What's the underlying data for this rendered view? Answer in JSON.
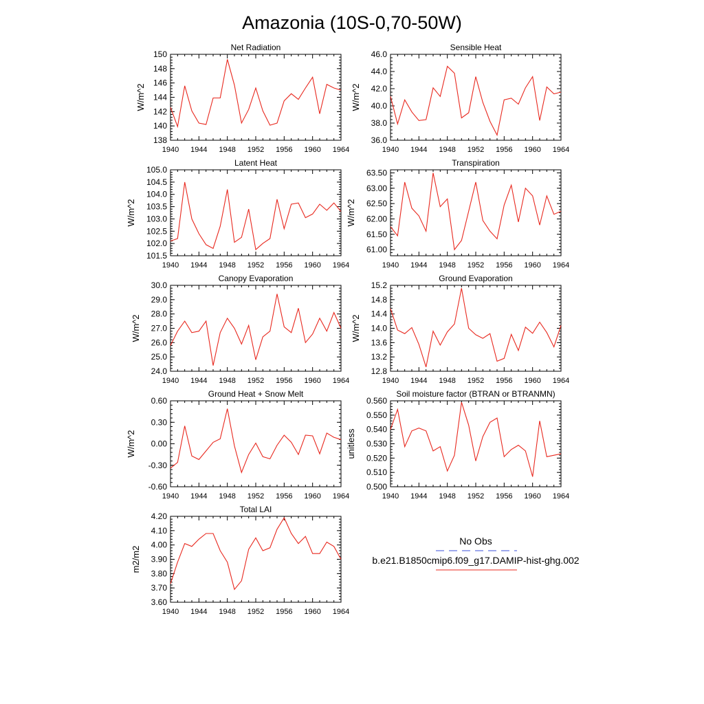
{
  "figure": {
    "title": "Amazonia (10S-0,70-50W)"
  },
  "legend": {
    "obs_label": "No Obs",
    "model_label": "b.e21.B1850cmip6.f09_g17.DAMIP-hist-ghg.002",
    "obs_color": "#3b4fd8",
    "model_color": "#e8281e"
  },
  "chart_data": [
    {
      "type": "line",
      "title": "Net Radiation",
      "ylabel": "W/m^2",
      "xlim": [
        1940,
        1964
      ],
      "ylim": [
        138,
        150
      ],
      "yticks": [
        "138",
        "140",
        "142",
        "144",
        "146",
        "148",
        "150"
      ],
      "xticks": [
        "1940",
        "1944",
        "1948",
        "1952",
        "1956",
        "1960",
        "1964"
      ],
      "series": [
        {
          "values": [
            142.6,
            139.9,
            145.6,
            142.1,
            140.4,
            140.2,
            143.9,
            143.9,
            149.3,
            145.7,
            140.4,
            142.3,
            145.3,
            142.1,
            140.1,
            140.4,
            143.5,
            144.5,
            143.7,
            145.3,
            146.8,
            141.7,
            145.8,
            145.3,
            145.0
          ]
        }
      ]
    },
    {
      "type": "line",
      "title": "Sensible Heat",
      "ylabel": "W/m^2",
      "xlim": [
        1940,
        1964
      ],
      "ylim": [
        36.0,
        46.0
      ],
      "yticks": [
        "36.0",
        "38.0",
        "40.0",
        "42.0",
        "44.0",
        "46.0"
      ],
      "xticks": [
        "1940",
        "1944",
        "1948",
        "1952",
        "1956",
        "1960",
        "1964"
      ],
      "series": [
        {
          "values": [
            41.1,
            37.9,
            40.7,
            39.3,
            38.3,
            38.4,
            42.1,
            41.1,
            44.6,
            43.8,
            38.6,
            39.2,
            43.4,
            40.4,
            38.2,
            36.6,
            40.7,
            40.9,
            40.2,
            42.1,
            43.4,
            38.3,
            42.2,
            41.4,
            41.6
          ]
        }
      ]
    },
    {
      "type": "line",
      "title": "Latent Heat",
      "ylabel": "W/m^2",
      "xlim": [
        1940,
        1964
      ],
      "ylim": [
        101.5,
        105.0
      ],
      "yticks": [
        "101.5",
        "102.0",
        "102.5",
        "103.0",
        "103.5",
        "104.0",
        "104.5",
        "105.0"
      ],
      "xticks": [
        "1940",
        "1944",
        "1948",
        "1952",
        "1956",
        "1960",
        "1964"
      ],
      "series": [
        {
          "values": [
            102.1,
            102.2,
            104.5,
            103.0,
            102.4,
            101.95,
            101.8,
            102.7,
            104.2,
            102.05,
            102.25,
            103.4,
            101.75,
            102.0,
            102.2,
            103.8,
            102.6,
            103.6,
            103.65,
            103.05,
            103.2,
            103.6,
            103.35,
            103.65,
            103.3
          ]
        }
      ]
    },
    {
      "type": "line",
      "title": "Transpiration",
      "ylabel": "W/m^2",
      "xlim": [
        1940,
        1964
      ],
      "ylim": [
        60.8,
        63.6
      ],
      "yticks": [
        "61.00",
        "61.50",
        "62.00",
        "62.50",
        "63.00",
        "63.50"
      ],
      "xticks": [
        "1940",
        "1944",
        "1948",
        "1952",
        "1956",
        "1960",
        "1964"
      ],
      "series": [
        {
          "values": [
            61.75,
            61.45,
            63.2,
            62.35,
            62.1,
            61.6,
            63.5,
            62.4,
            62.65,
            61.0,
            61.3,
            62.25,
            63.2,
            61.95,
            61.6,
            61.35,
            62.45,
            63.1,
            61.9,
            63.0,
            62.75,
            61.8,
            62.75,
            62.15,
            62.25
          ]
        }
      ]
    },
    {
      "type": "line",
      "title": "Canopy Evaporation",
      "ylabel": "W/m^2",
      "xlim": [
        1940,
        1964
      ],
      "ylim": [
        24.0,
        30.0
      ],
      "yticks": [
        "24.0",
        "25.0",
        "26.0",
        "27.0",
        "28.0",
        "29.0",
        "30.0"
      ],
      "xticks": [
        "1940",
        "1944",
        "1948",
        "1952",
        "1956",
        "1960",
        "1964"
      ],
      "series": [
        {
          "values": [
            25.8,
            26.8,
            27.5,
            26.7,
            26.8,
            27.5,
            24.4,
            26.7,
            27.7,
            27.0,
            25.9,
            27.2,
            24.8,
            26.4,
            26.8,
            29.4,
            27.1,
            26.7,
            28.4,
            26.0,
            26.6,
            27.7,
            26.8,
            28.1,
            27.0
          ]
        }
      ]
    },
    {
      "type": "line",
      "title": "Ground Evaporation",
      "ylabel": "W/m^2",
      "xlim": [
        1940,
        1964
      ],
      "ylim": [
        12.8,
        15.2
      ],
      "yticks": [
        "12.8",
        "13.2",
        "13.6",
        "14.0",
        "14.4",
        "14.8",
        "15.2"
      ],
      "xticks": [
        "1940",
        "1944",
        "1948",
        "1952",
        "1956",
        "1960",
        "1964"
      ],
      "series": [
        {
          "values": [
            14.55,
            13.95,
            13.85,
            14.02,
            13.55,
            12.92,
            13.92,
            13.53,
            13.9,
            14.12,
            15.12,
            14.0,
            13.82,
            13.72,
            13.85,
            13.08,
            13.16,
            13.83,
            13.38,
            14.03,
            13.86,
            14.17,
            13.88,
            13.48,
            14.08
          ]
        }
      ]
    },
    {
      "type": "line",
      "title": "Ground Heat + Snow Melt",
      "ylabel": "W/m^2",
      "xlim": [
        1940,
        1964
      ],
      "ylim": [
        -0.6,
        0.6
      ],
      "yticks": [
        "-0.60",
        "-0.30",
        "0.00",
        "0.30",
        "0.60"
      ],
      "xticks": [
        "1940",
        "1944",
        "1948",
        "1952",
        "1956",
        "1960",
        "1964"
      ],
      "series": [
        {
          "values": [
            -0.34,
            -0.26,
            0.25,
            -0.17,
            -0.22,
            -0.1,
            0.02,
            0.07,
            0.49,
            -0.03,
            -0.4,
            -0.15,
            0.01,
            -0.18,
            -0.21,
            -0.02,
            0.12,
            0.02,
            -0.15,
            0.12,
            0.11,
            -0.14,
            0.15,
            0.09,
            0.06
          ]
        }
      ]
    },
    {
      "type": "line",
      "title": "Soil moisture factor (BTRAN or BTRANMN)",
      "ylabel": "unitless",
      "xlim": [
        1940,
        1964
      ],
      "ylim": [
        0.5,
        0.56
      ],
      "yticks": [
        "0.500",
        "0.510",
        "0.520",
        "0.530",
        "0.540",
        "0.550",
        "0.560"
      ],
      "xticks": [
        "1940",
        "1944",
        "1948",
        "1952",
        "1956",
        "1960",
        "1964"
      ],
      "series": [
        {
          "values": [
            0.54,
            0.554,
            0.528,
            0.539,
            0.541,
            0.539,
            0.525,
            0.528,
            0.511,
            0.522,
            0.559,
            0.543,
            0.518,
            0.535,
            0.545,
            0.548,
            0.521,
            0.526,
            0.529,
            0.525,
            0.507,
            0.546,
            0.521,
            0.522,
            0.523
          ]
        }
      ]
    },
    {
      "type": "line",
      "title": "Total LAI",
      "ylabel": "m2/m2",
      "xlim": [
        1940,
        1964
      ],
      "ylim": [
        3.6,
        4.2
      ],
      "yticks": [
        "3.60",
        "3.70",
        "3.80",
        "3.90",
        "4.00",
        "4.10",
        "4.20"
      ],
      "xticks": [
        "1940",
        "1944",
        "1948",
        "1952",
        "1956",
        "1960",
        "1964"
      ],
      "series": [
        {
          "values": [
            3.73,
            3.88,
            4.01,
            3.99,
            4.04,
            4.08,
            4.08,
            3.96,
            3.88,
            3.69,
            3.75,
            3.97,
            4.05,
            3.96,
            3.98,
            4.11,
            4.19,
            4.08,
            4.01,
            4.06,
            3.94,
            3.94,
            4.02,
            3.99,
            3.9
          ]
        }
      ]
    }
  ]
}
